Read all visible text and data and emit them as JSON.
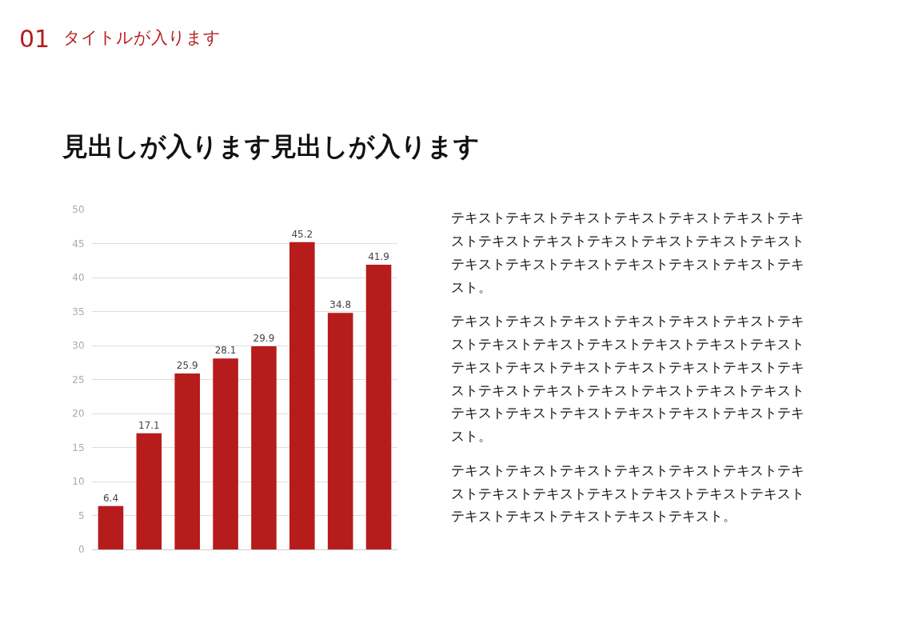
{
  "chart_data": {
    "type": "bar",
    "title": "タイトルが入ります",
    "subtitle": "見出しが入ります見出しが入ります",
    "annotations": [
      "01",
      "テキストテキストテキストテキストテキストテキストテキストテキストテキストテキストテキストテキストテキストテキストテキストテキストテキストテキストテキストテキスト。",
      "テキストテキストテキストテキストテキストテキストテキストテキストテキストテキストテキストテキストテキストテキストテキストテキストテキストテキストテキストテキストテキストテキストテキストテキストテキストテキストテキストテキストテキストテキストテキストテキストテキスト。",
      "テキストテキストテキストテキストテキストテキストテキストテキストテキストテキストテキストテキストテキストテキストテキストテキストテキストテキスト。"
    ],
    "categories": [
      null,
      null,
      null,
      null,
      null,
      null,
      null,
      null
    ],
    "values": [
      6.4,
      17.1,
      25.9,
      28.1,
      29.9,
      45.2,
      34.8,
      41.9
    ],
    "color": "#b71c1c",
    "data_labels": true,
    "ylim": [
      0,
      50
    ],
    "yticks": [
      0,
      5,
      10,
      15,
      20,
      25,
      30,
      35,
      40,
      45,
      50
    ],
    "grid": "y",
    "tick_labels": "y"
  }
}
